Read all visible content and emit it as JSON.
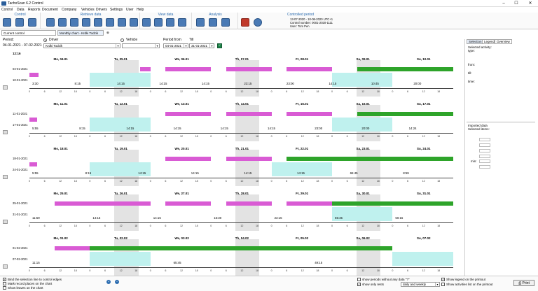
{
  "window": {
    "title": "TachoScan 6.2 Control",
    "minimize": "–",
    "maximize": "☐",
    "close": "✕"
  },
  "menu": [
    "Control",
    "Data",
    "Reports",
    "Document",
    "Company",
    "Vehicles",
    "Drivers",
    "Settings",
    "User",
    "Help"
  ],
  "ribbon": {
    "groups": [
      {
        "label": "Control",
        "buttons": 3
      },
      {
        "label": "Retrieve data",
        "buttons": 8
      },
      {
        "label": "View data",
        "buttons": 4
      },
      {
        "label": "Analysis",
        "buttons": 3
      },
      {
        "label": "",
        "buttons": 2
      }
    ],
    "controlled_period": {
      "title": "Controlled period",
      "line1": "13-07-2020 - 10-08-2020 UTC+1",
      "line2": "Control number: 0001-2020-1111",
      "line3": "User: Tom Pen"
    }
  },
  "tabs": [
    "Current control",
    "Monthly chart - Krdki Todzik",
    "⊗"
  ],
  "filters": {
    "period_label": "Period:",
    "period_value": "04-01-2021 - 07-02-2021",
    "driver_label": "Driver",
    "vehicle_label": "Vehicle",
    "driver_value": "Krdki Todzik",
    "period_from_label": "Period from",
    "till_label": "Till",
    "from_value": "04-01-2021",
    "till_value": "31-01-2021"
  },
  "chart_header": {
    "time": "12:16"
  },
  "weeks": [
    {
      "days": [
        "Mo, 04.01",
        "Tu, 05.01",
        "We, 06.01",
        "Th, 07.01",
        "Fr, 08.01",
        "Sa, 09.01",
        "Su, 10.01"
      ],
      "dates": [
        "04-01-2021",
        "10-01-2021"
      ],
      "durations": [
        "3:30",
        "8:15",
        "14:15",
        "14:15",
        "14:15",
        "23:15",
        "23:00",
        "14:15",
        "10:45",
        "20:00"
      ]
    },
    {
      "days": [
        "Mo, 11.01",
        "Tu, 12.01",
        "We, 13.01",
        "Th, 14.01",
        "Fr, 15.01",
        "Sa, 16.01",
        "Su, 17.01"
      ],
      "dates": [
        "11-01-2021",
        "17-01-2021"
      ],
      "durations": [
        "5:55",
        "8:15",
        "14:15",
        "14:15",
        "14:15",
        "14:15",
        "23:00",
        "20:00",
        "14:24"
      ]
    },
    {
      "days": [
        "Mo, 18.01",
        "Tu, 19.01",
        "We, 20.01",
        "Th, 21.01",
        "Fr, 22.01",
        "Sa, 23.01",
        "Su, 24.01"
      ],
      "dates": [
        "18-01-2021",
        "24-01-2021"
      ],
      "durations": [
        "5:55",
        "8:15",
        "14:15",
        "14:15",
        "14:15",
        "14:15",
        "65:45",
        "8:59"
      ]
    },
    {
      "days": [
        "Mo, 25.01",
        "Tu, 26.01",
        "We, 27.01",
        "Th, 28.01",
        "Fr, 29.01",
        "Sa, 30.01",
        "Su, 31.01"
      ],
      "dates": [
        "25-01-2021",
        "31-01-2021"
      ],
      "durations": [
        "11:59",
        "14:15",
        "14:15",
        "15:30",
        "23:15",
        "65:45",
        "50:15"
      ]
    },
    {
      "days": [
        "Mo, 01.02",
        "Tu, 02.02",
        "We, 03.02",
        "Th, 04.02",
        "Fr, 05.02",
        "Sa, 06.02",
        "Su, 07.02"
      ],
      "dates": [
        "01-02-2021",
        "07-02-2021"
      ],
      "durations": [
        "11:15",
        "65:45",
        "49:15"
      ]
    }
  ],
  "ticks": [
    "0",
    "6",
    "12",
    "18"
  ],
  "sidebar": {
    "tabs": [
      "Selection",
      "Legend",
      "Overview"
    ],
    "selected_activity": "Selected activity:",
    "type": "type:",
    "from": "from:",
    "till": "till:",
    "time": "time:",
    "imported": "Imported data",
    "selected_items": "Selected items:",
    "min": "min:"
  },
  "bottom": {
    "opt1": "Bind the selection line to control edges",
    "opt2": "Mark record places on the chart",
    "opt3": "Show leaves on the chart",
    "opt4": "show periods without any data \"?\"",
    "opt5": "show only rests",
    "rest_select": "daily and weekly",
    "opt6": "Show legend on the printout",
    "opt7": "Show activities list on the printout",
    "print": "Print"
  }
}
